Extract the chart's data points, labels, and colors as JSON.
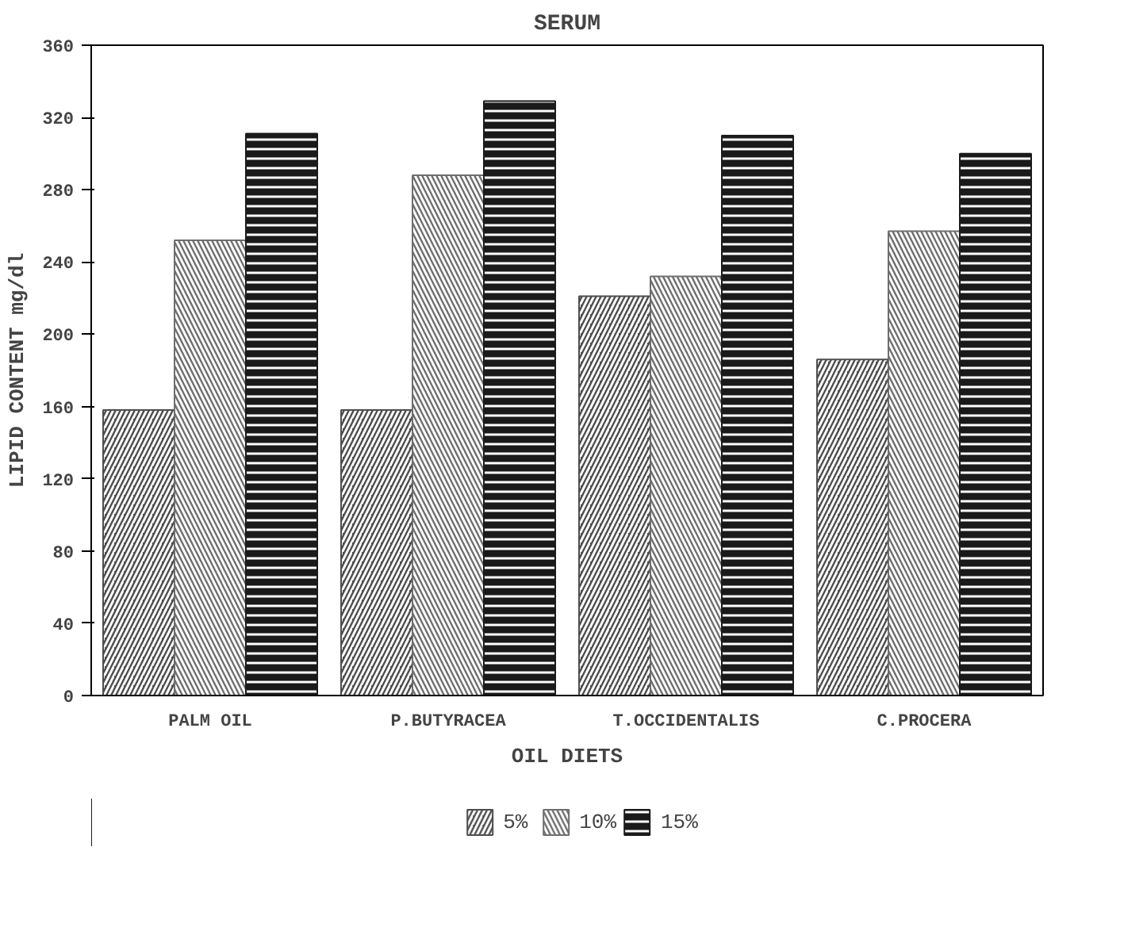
{
  "chart_data": {
    "type": "bar",
    "title": "SERUM",
    "xlabel": "OIL DIETS",
    "ylabel": "LIPID CONTENT mg/dl",
    "categories": [
      "PALM OIL",
      "P.BUTYRACEA",
      "T.OCCIDENTALIS",
      "C.PROCERA"
    ],
    "series": [
      {
        "name": "5%",
        "color": "#4d4d4d",
        "values": [
          158,
          158,
          221,
          186
        ]
      },
      {
        "name": "10%",
        "color": "#6e6e6e",
        "values": [
          252,
          288,
          232,
          257
        ]
      },
      {
        "name": "15%",
        "color": "#1a1a1a",
        "values": [
          311,
          329,
          310,
          300
        ]
      }
    ],
    "ylim": [
      0,
      360
    ],
    "yticks": [
      0,
      40,
      80,
      120,
      160,
      200,
      240,
      280,
      320,
      360
    ],
    "grid": false,
    "legend": "bottom"
  }
}
